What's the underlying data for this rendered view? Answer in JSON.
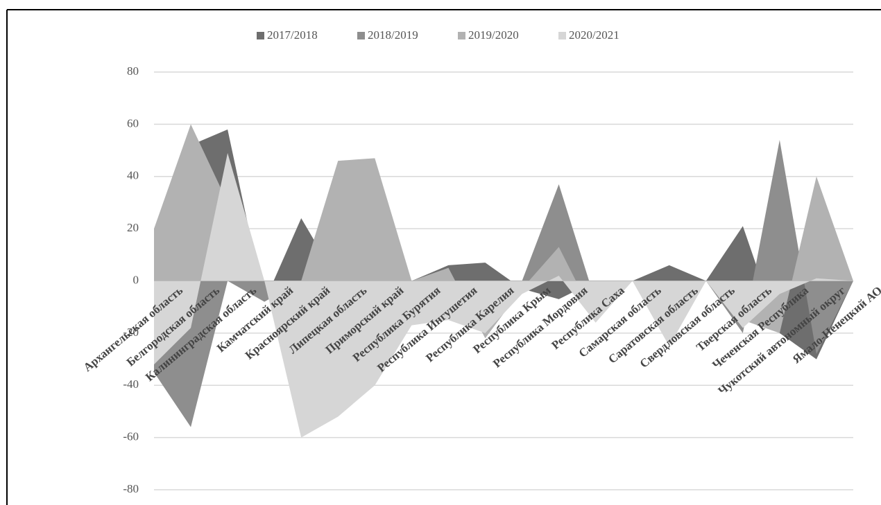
{
  "chart_data": {
    "type": "area",
    "categories": [
      "Архангельская область",
      "Белгородская область",
      "Калининградская область",
      "Камчатский край",
      "Красноярский край",
      "Липецкая область",
      "Приморский край",
      "Республика Бурятия",
      "Республика Ингушетия",
      "Республика Карелия",
      "Республика Крым",
      "Республика Мордовия",
      "Республика Саха",
      "Самарская область",
      "Саратовская область",
      "Свердловская область",
      "Тверская область",
      "Чеченская Республика",
      "Чукотский автономный округ",
      "Ямало-Ненецкий АО"
    ],
    "series": [
      {
        "name": "2017/2018",
        "color": "#6e6e6e",
        "values": [
          0,
          52,
          58,
          -8,
          24,
          0,
          20,
          0,
          6,
          7,
          -3,
          -7,
          0,
          0,
          6,
          0,
          21,
          -20,
          -30,
          0
        ]
      },
      {
        "name": "2018/2019",
        "color": "#8e8e8e",
        "values": [
          -35,
          -56,
          0,
          -8,
          0,
          0,
          0,
          0,
          0,
          0,
          0,
          37,
          -8,
          0,
          0,
          0,
          -20,
          54,
          -28,
          0
        ]
      },
      {
        "name": "2019/2020",
        "color": "#b2b2b2",
        "values": [
          20,
          60,
          30,
          0,
          0,
          46,
          47,
          0,
          5,
          -22,
          -3,
          13,
          -15,
          0,
          0,
          0,
          -15,
          -20,
          40,
          0
        ]
      },
      {
        "name": "2020/2021",
        "color": "#d6d6d6",
        "values": [
          -32,
          -18,
          49,
          0,
          -60,
          -52,
          -40,
          -17,
          -15,
          -20,
          -5,
          2,
          -16,
          0,
          -25,
          0,
          -18,
          -5,
          1,
          0
        ]
      }
    ],
    "ylim": [
      -80,
      80
    ],
    "yticks": [
      -80,
      -60,
      -40,
      -20,
      0,
      20,
      40,
      60,
      80
    ],
    "grid": true,
    "legend": "top"
  }
}
